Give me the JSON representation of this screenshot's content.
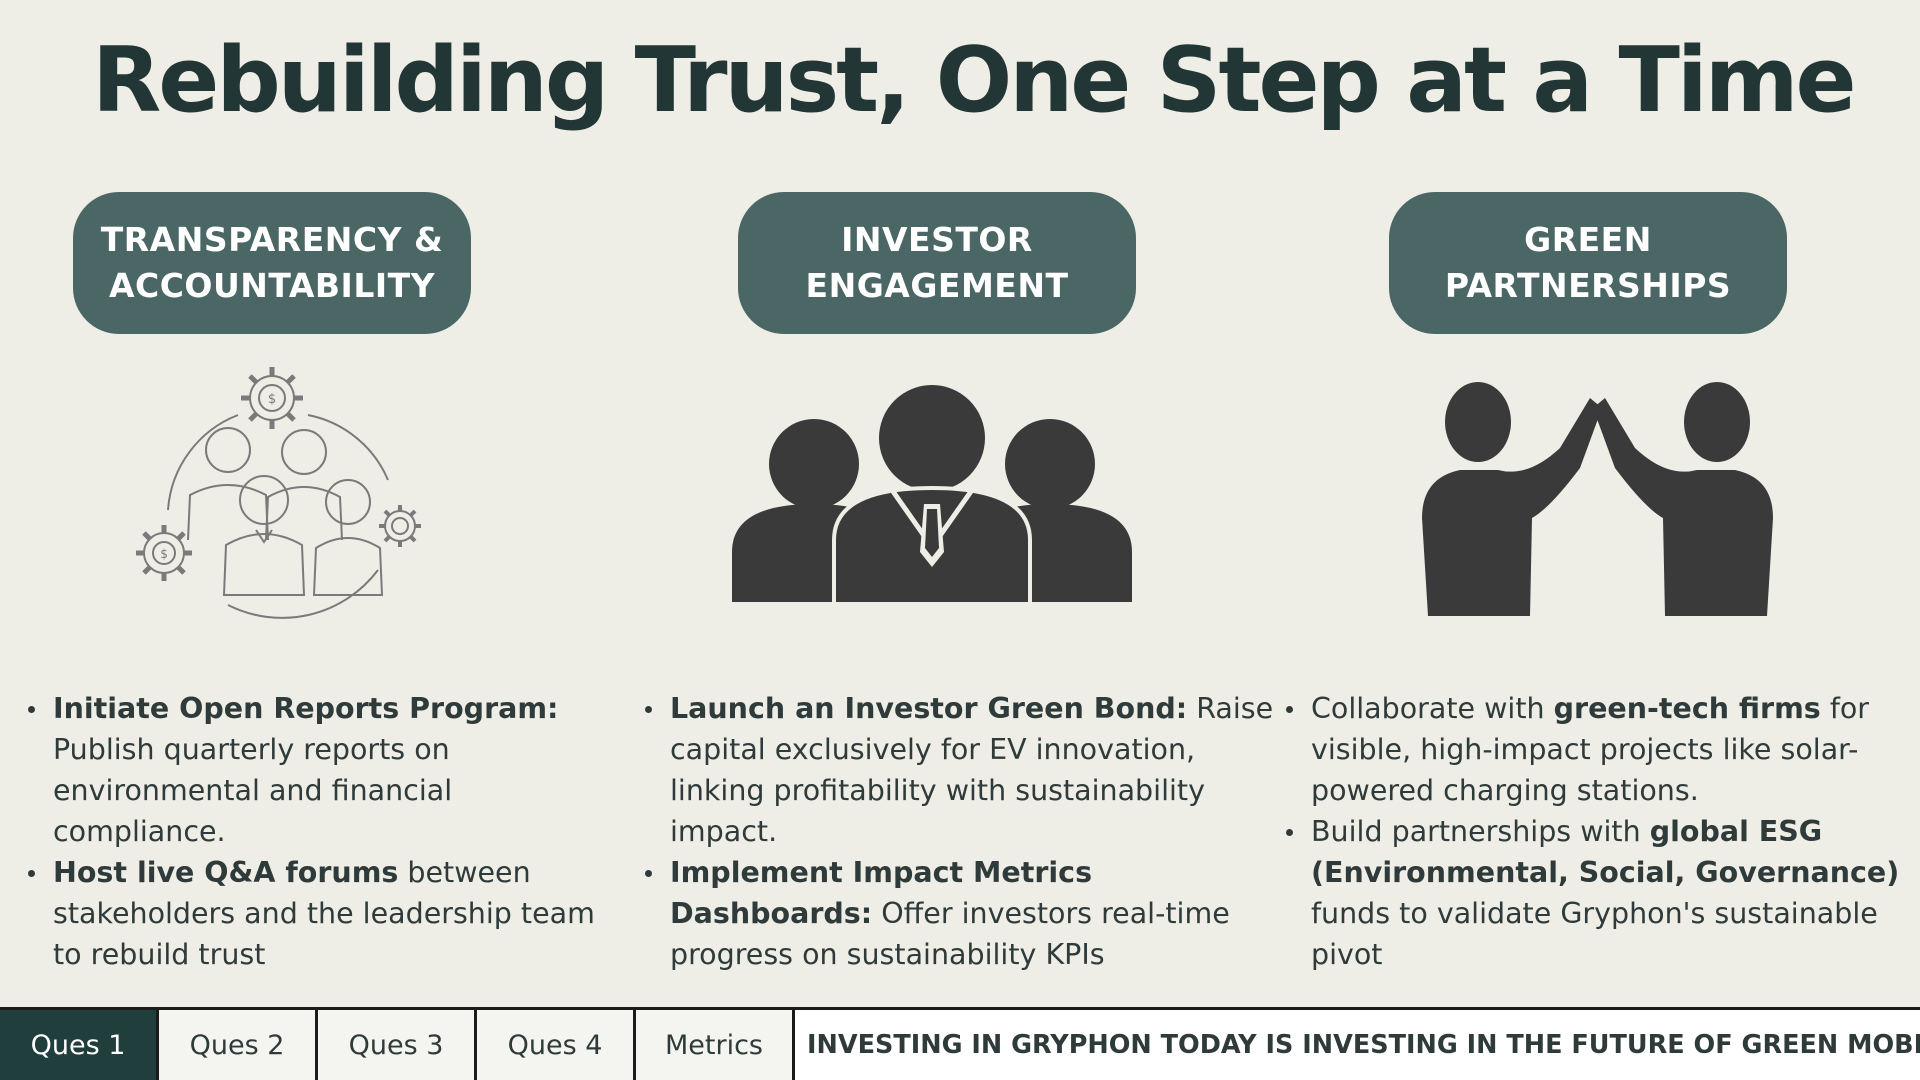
{
  "title": "Rebuilding Trust, One Step at a Time",
  "columns": [
    {
      "heading": "TRANSPARENCY &\nACCOUNTABILITY",
      "icon": "team-gears-icon",
      "bullets": [
        {
          "bold": "Initiate Open Reports Program:",
          "text": " Publish quarterly reports on environmental and financial compliance."
        },
        {
          "bold": "Host live Q&A forums",
          "text": " between stakeholders and the leadership team to rebuild trust"
        }
      ]
    },
    {
      "heading": "INVESTOR\nENGAGEMENT",
      "icon": "investors-group-icon",
      "bullets": [
        {
          "bold": "Launch an Investor Green Bond:",
          "text": " Raise capital exclusively for EV innovation, linking profitability with sustainability impact."
        },
        {
          "bold": "Implement Impact Metrics Dashboards:",
          "text": " Offer investors real-time progress on sustainability KPIs"
        }
      ]
    },
    {
      "heading": "GREEN\nPARTNERSHIPS",
      "icon": "high-five-icon",
      "bullets": [
        {
          "pre": "Collaborate with ",
          "bold": "green-tech firms",
          "text": " for visible, high-impact projects like solar-powered charging stations."
        },
        {
          "pre": "Build partnerships with ",
          "bold": "global ESG (Environmental, Social, Governance)",
          "text": " funds to validate Gryphon's sustainable pivot"
        }
      ]
    }
  ],
  "footer": {
    "tabs": [
      "Ques 1",
      "Ques 2",
      "Ques 3",
      "Ques 4",
      "Metrics"
    ],
    "active_tab": "Ques 1",
    "banner": "INVESTING IN GRYPHON TODAY IS INVESTING IN THE FUTURE OF GREEN MOBILITY"
  },
  "colors": {
    "background": "#eeede6",
    "pill": "#4a6665",
    "title": "#223635",
    "active_tab": "#1f3e3c",
    "icon": "#3a3a3a"
  }
}
